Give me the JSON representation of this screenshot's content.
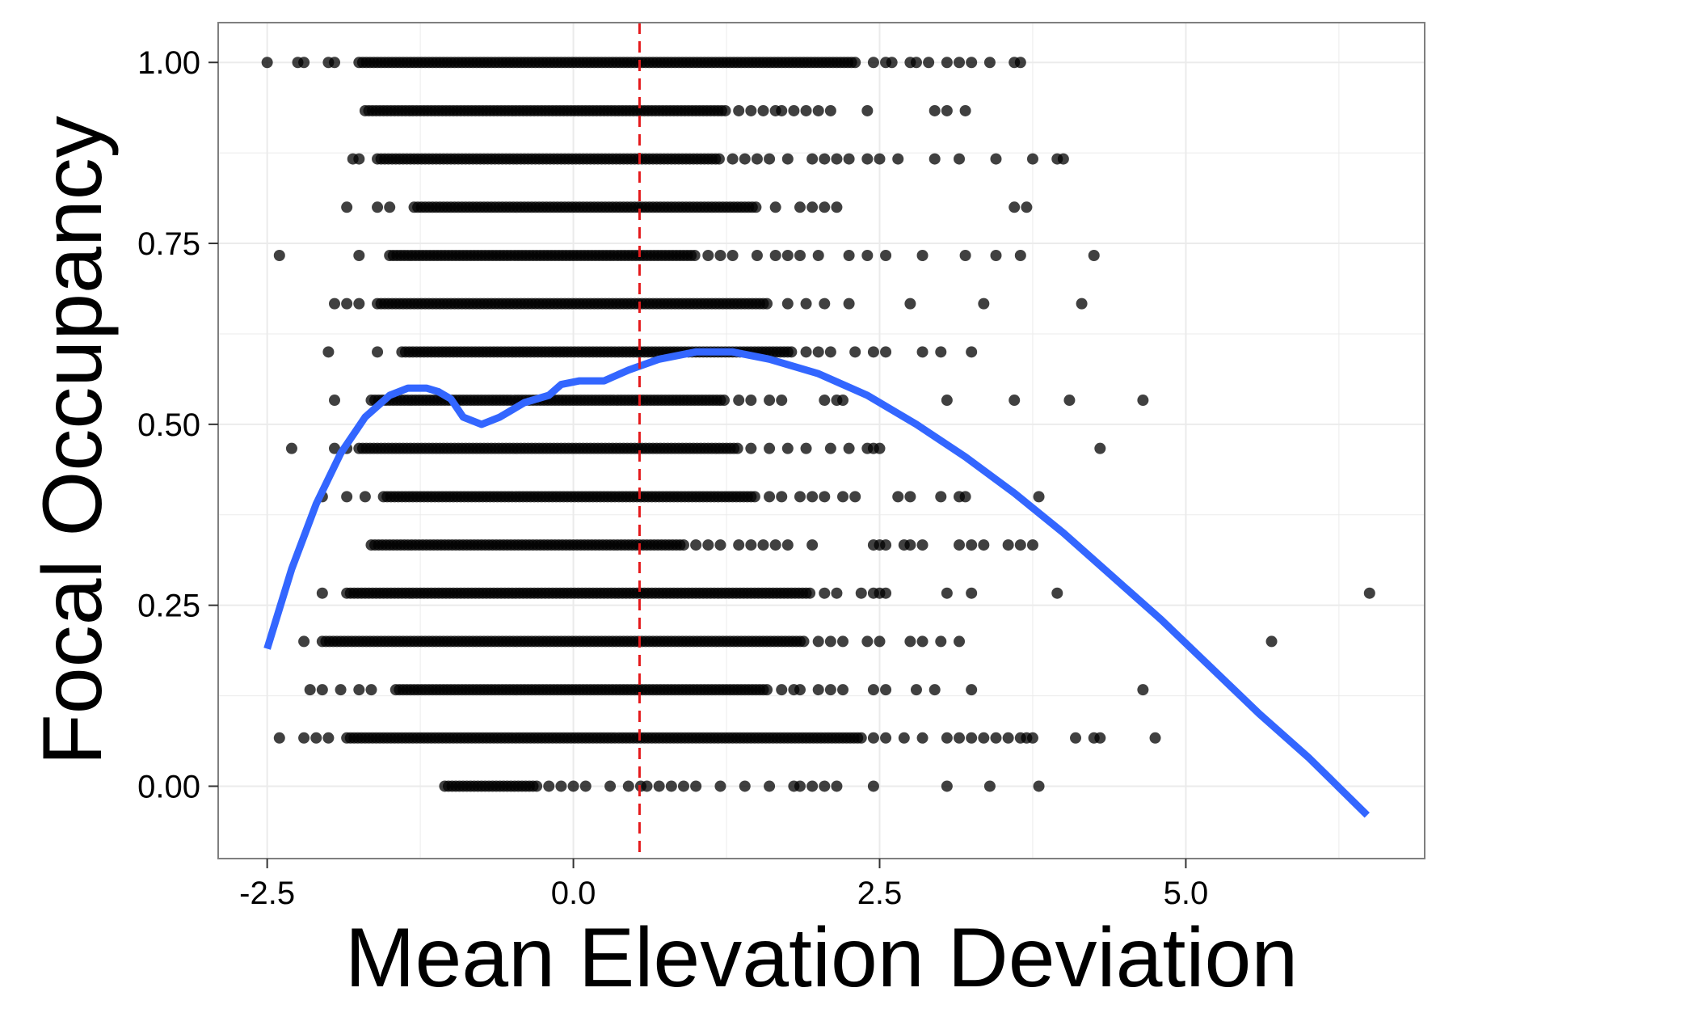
{
  "chart_data": {
    "type": "scatter",
    "title": "",
    "xlabel": "Mean Elevation Deviation",
    "ylabel": "Focal Occupancy",
    "xlim": [
      -2.9,
      6.95
    ],
    "ylim": [
      -0.1,
      1.055
    ],
    "x_ticks": [
      -2.5,
      0.0,
      2.5,
      5.0
    ],
    "x_tick_labels": [
      "-2.5",
      "0.0",
      "2.5",
      "5.0"
    ],
    "y_ticks": [
      0.0,
      0.25,
      0.5,
      0.75,
      1.0
    ],
    "y_tick_labels": [
      "0.00",
      "0.25",
      "0.50",
      "0.75",
      "1.00"
    ],
    "grid": true,
    "legend": "none",
    "colors": {
      "points": "#000000",
      "smooth": "#3366ff",
      "reference_line": "#e41a1c",
      "grid": "#ebebeb",
      "panel_border": "#7f7f7f"
    },
    "reference_line": {
      "axis": "x",
      "value": 0.54,
      "style": "dashed"
    },
    "rows": [
      {
        "y": 1.0,
        "dense": [
          -1.75,
          2.3
        ],
        "extra": [
          -2.5,
          -2.2,
          -2.25,
          -2.0,
          -1.95,
          2.45,
          2.55,
          2.6,
          2.75,
          2.8,
          2.9,
          3.05,
          3.15,
          3.25,
          3.4,
          3.6,
          3.65
        ]
      },
      {
        "y": 0.9333,
        "dense": [
          -1.7,
          1.25
        ],
        "extra": [
          1.35,
          1.45,
          1.55,
          1.65,
          1.7,
          1.8,
          1.9,
          2.0,
          2.1,
          2.4,
          2.95,
          3.05,
          3.2
        ]
      },
      {
        "y": 0.8667,
        "dense": [
          -1.6,
          1.2
        ],
        "extra": [
          -1.8,
          -1.75,
          1.3,
          1.4,
          1.5,
          1.6,
          1.75,
          1.95,
          2.05,
          2.15,
          2.25,
          2.4,
          2.5,
          2.65,
          2.95,
          3.15,
          3.45,
          3.75,
          3.95,
          4.0
        ]
      },
      {
        "y": 0.8,
        "dense": [
          -1.3,
          1.5
        ],
        "extra": [
          -1.85,
          -1.6,
          -1.5,
          1.65,
          1.85,
          1.95,
          2.05,
          2.15,
          3.6,
          3.7
        ]
      },
      {
        "y": 0.7333,
        "dense": [
          -1.5,
          1.0
        ],
        "extra": [
          -2.4,
          -1.75,
          1.1,
          1.2,
          1.3,
          1.5,
          1.65,
          1.75,
          1.85,
          2.0,
          2.25,
          2.4,
          2.55,
          2.85,
          3.2,
          3.45,
          3.65,
          4.25
        ]
      },
      {
        "y": 0.6667,
        "dense": [
          -1.6,
          1.6
        ],
        "extra": [
          -1.95,
          -1.85,
          -1.75,
          1.75,
          1.9,
          2.05,
          2.25,
          2.75,
          3.35,
          4.15
        ]
      },
      {
        "y": 0.6,
        "dense": [
          -1.4,
          1.8
        ],
        "extra": [
          -2.0,
          -1.6,
          1.9,
          2.0,
          2.1,
          2.3,
          2.45,
          2.55,
          2.85,
          3.0,
          3.25
        ]
      },
      {
        "y": 0.5333,
        "dense": [
          -1.65,
          1.25
        ],
        "extra": [
          -1.95,
          1.35,
          1.45,
          1.6,
          1.7,
          2.05,
          2.15,
          2.2,
          3.05,
          3.6,
          4.05,
          4.65
        ]
      },
      {
        "y": 0.4667,
        "dense": [
          -1.75,
          1.35
        ],
        "extra": [
          -2.3,
          -1.95,
          -1.85,
          1.45,
          1.6,
          1.75,
          1.9,
          2.1,
          2.25,
          2.4,
          2.45,
          2.5,
          4.3
        ]
      },
      {
        "y": 0.4,
        "dense": [
          -1.55,
          1.5
        ],
        "extra": [
          -2.05,
          -1.85,
          -1.7,
          1.6,
          1.7,
          1.85,
          1.95,
          2.05,
          2.2,
          2.3,
          2.65,
          2.75,
          3.0,
          3.15,
          3.2,
          3.8
        ]
      },
      {
        "y": 0.3333,
        "dense": [
          -1.65,
          0.9
        ],
        "extra": [
          1.0,
          1.1,
          1.2,
          1.35,
          1.45,
          1.55,
          1.65,
          1.75,
          1.95,
          2.45,
          2.5,
          2.55,
          2.7,
          2.75,
          2.85,
          3.15,
          3.25,
          3.35,
          3.55,
          3.65,
          3.75
        ]
      },
      {
        "y": 0.2667,
        "dense": [
          -1.85,
          1.95
        ],
        "extra": [
          -2.05,
          2.05,
          2.15,
          2.35,
          2.45,
          2.5,
          2.55,
          3.05,
          3.25,
          3.95,
          6.5
        ]
      },
      {
        "y": 0.2,
        "dense": [
          -2.05,
          1.9
        ],
        "extra": [
          -2.2,
          2.0,
          2.1,
          2.2,
          2.4,
          2.5,
          2.75,
          2.85,
          3.0,
          3.15,
          5.7
        ]
      },
      {
        "y": 0.1333,
        "dense": [
          -1.45,
          1.6
        ],
        "extra": [
          -2.15,
          -2.05,
          -1.9,
          -1.75,
          -1.65,
          1.7,
          1.8,
          1.85,
          2.0,
          2.1,
          2.2,
          2.45,
          2.55,
          2.8,
          2.95,
          3.25,
          4.65
        ]
      },
      {
        "y": 0.0667,
        "dense": [
          -1.85,
          2.35
        ],
        "extra": [
          -2.4,
          -2.2,
          -2.1,
          -2.0,
          2.45,
          2.55,
          2.7,
          2.85,
          3.05,
          3.15,
          3.25,
          3.35,
          3.45,
          3.55,
          3.65,
          3.7,
          3.75,
          4.1,
          4.25,
          4.3,
          4.75
        ]
      },
      {
        "y": 0.0,
        "dense": [
          -1.05,
          -0.3
        ],
        "extra": [
          -0.2,
          -0.1,
          0.0,
          0.1,
          0.3,
          0.45,
          0.55,
          0.6,
          0.7,
          0.8,
          0.9,
          1.0,
          1.2,
          1.4,
          1.6,
          1.8,
          1.85,
          1.95,
          2.05,
          2.15,
          2.45,
          3.05,
          3.4,
          3.8
        ]
      }
    ],
    "smooth_curve": {
      "x": [
        -2.5,
        -2.3,
        -2.1,
        -1.9,
        -1.7,
        -1.5,
        -1.35,
        -1.2,
        -1.1,
        -1.0,
        -0.9,
        -0.75,
        -0.6,
        -0.4,
        -0.2,
        -0.1,
        0.05,
        0.25,
        0.45,
        0.7,
        1.0,
        1.3,
        1.6,
        2.0,
        2.4,
        2.8,
        3.2,
        3.6,
        4.0,
        4.4,
        4.8,
        5.2,
        5.6,
        6.0,
        6.3,
        6.48
      ],
      "y": [
        0.19,
        0.3,
        0.39,
        0.46,
        0.51,
        0.54,
        0.55,
        0.55,
        0.545,
        0.535,
        0.51,
        0.5,
        0.51,
        0.53,
        0.54,
        0.555,
        0.56,
        0.56,
        0.575,
        0.59,
        0.6,
        0.6,
        0.59,
        0.57,
        0.54,
        0.5,
        0.455,
        0.405,
        0.35,
        0.29,
        0.23,
        0.165,
        0.1,
        0.04,
        -0.01,
        -0.04
      ]
    }
  }
}
